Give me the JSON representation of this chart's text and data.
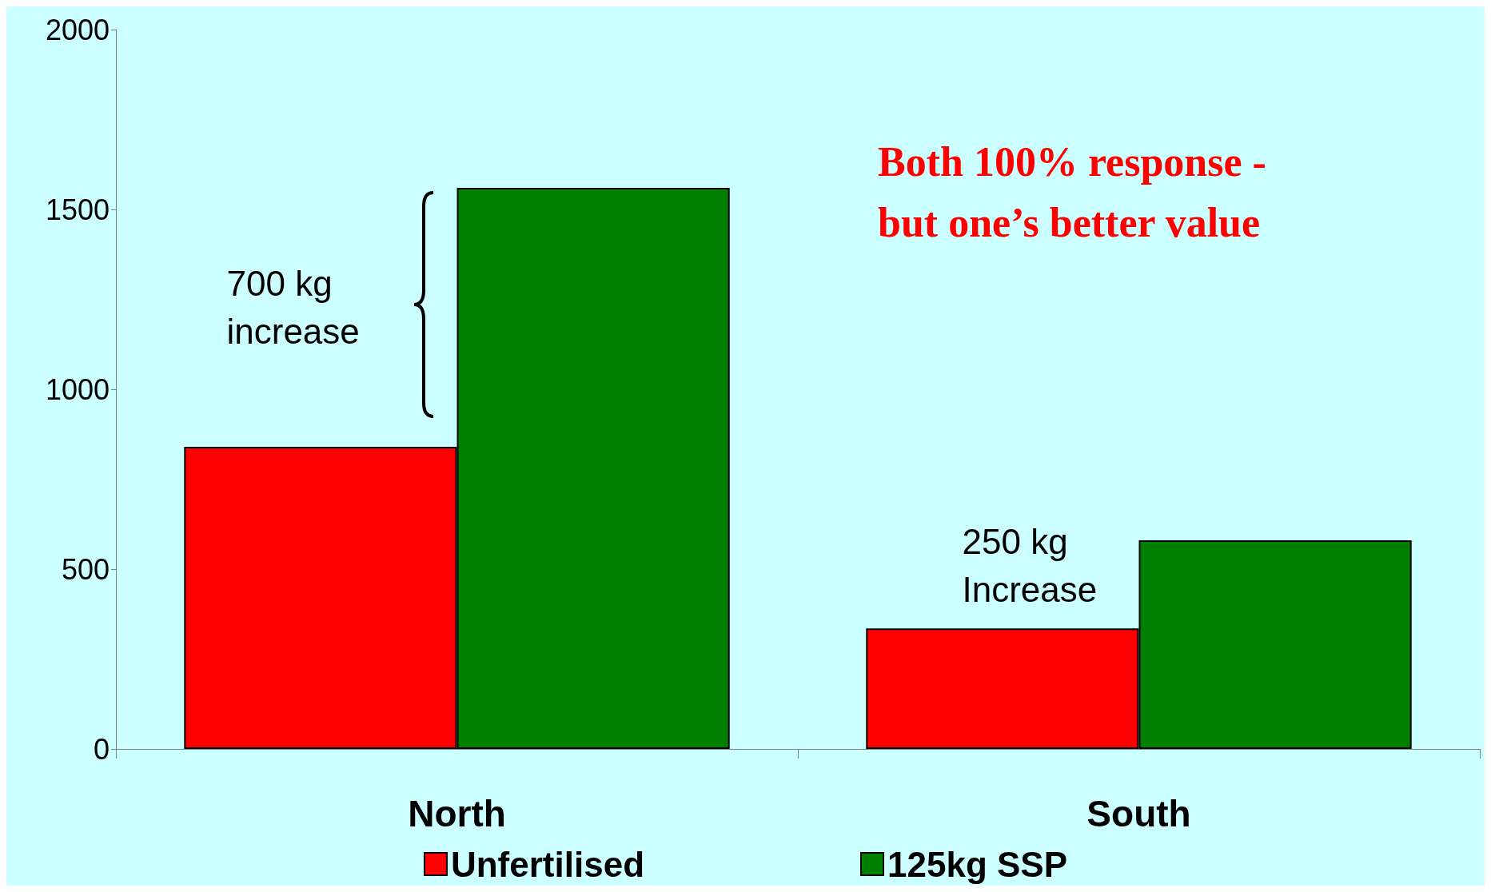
{
  "chart_data": {
    "type": "bar",
    "categories": [
      "North",
      "South"
    ],
    "series": [
      {
        "name": "Unfertilised",
        "color": "#ff0000",
        "values": [
          840,
          335
        ]
      },
      {
        "name": "125kg SSP",
        "color": "#008000",
        "values": [
          1560,
          580
        ]
      }
    ],
    "ylim": [
      0,
      2000
    ],
    "yticks": [
      0,
      500,
      1000,
      1500,
      2000
    ],
    "grid": false,
    "legend": "bottom",
    "annotations": [
      {
        "text": "700 kg\nincrease",
        "x": "North",
        "y": 1200
      },
      {
        "text": "250 kg\nIncrease",
        "x": "South",
        "y": 570
      },
      "Both 100% response -\nbut one’s better value"
    ]
  }
}
